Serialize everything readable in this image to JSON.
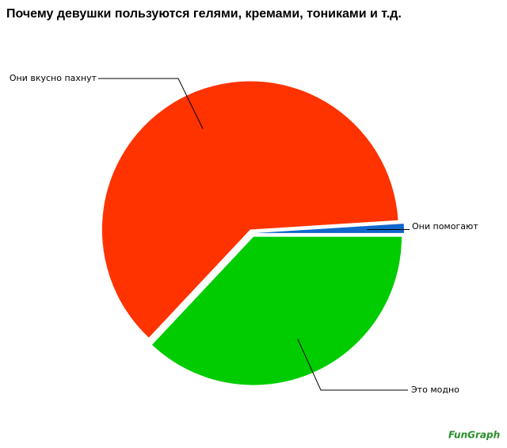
{
  "chart_data": {
    "type": "pie",
    "title": "Почему девушки пользуются гелями, кремами, тониками и т.д.",
    "categories": [
      "Это модно",
      "Они вкусно пахнут",
      "Они помогают"
    ],
    "values": [
      37,
      62,
      1
    ],
    "colors": [
      "#00cc00",
      "#ff3300",
      "#1166cc"
    ],
    "watermark": "FunGraph"
  }
}
